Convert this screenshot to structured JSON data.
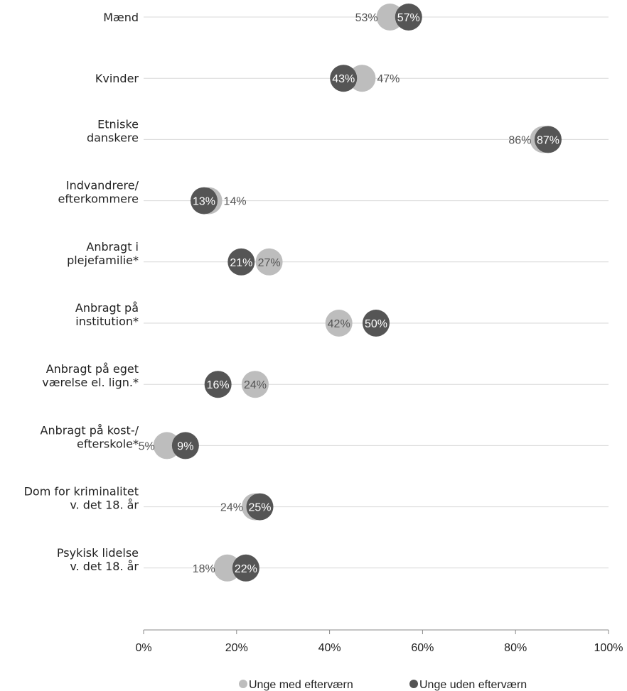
{
  "chart_data": {
    "type": "scatter",
    "subtype": "dot-plot",
    "categories": [
      "Mænd",
      "Kvinder",
      "Etniske\ndanskere",
      "Indvandrere/\nefterkommere",
      "Anbragt i\nplejefamilie*",
      "Anbragt på\ninstitution*",
      "Anbragt på eget\nværelse el. lign.*",
      "Anbragt på kost-/\nefterskole*",
      "Dom for kriminalitet\nv. det 18. år",
      "Psykisk lidelse\nv. det 18. år"
    ],
    "series": [
      {
        "name": "Unge med efterværn",
        "color": "#bdbdbd",
        "values": [
          53,
          47,
          86,
          14,
          27,
          42,
          24,
          5,
          24,
          18
        ]
      },
      {
        "name": "Unge uden efterværn",
        "color": "#555555",
        "values": [
          57,
          43,
          87,
          13,
          21,
          50,
          16,
          9,
          25,
          22
        ]
      }
    ],
    "xlim": [
      0,
      100
    ],
    "xticks": [
      0,
      20,
      40,
      60,
      80,
      100
    ],
    "xtick_labels": [
      "0%",
      "20%",
      "40%",
      "60%",
      "80%",
      "100%"
    ],
    "grid": true,
    "legend_position": "bottom"
  }
}
